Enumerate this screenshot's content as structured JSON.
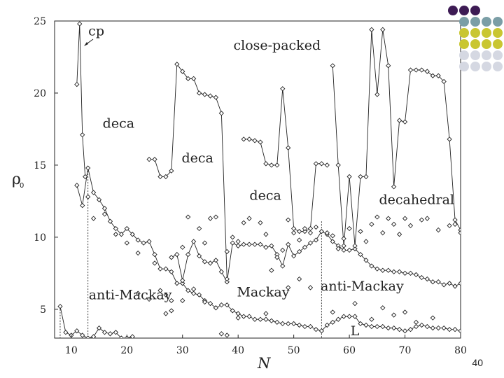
{
  "page_number": "40",
  "decor": {
    "colors": [
      "#3d1b54",
      "#7b9ea6",
      "#c9c631",
      "#d5d8e2"
    ],
    "rows": [
      [
        "#3d1b54",
        "#3d1b54",
        "#3d1b54"
      ],
      [
        "#7b9ea6",
        "#7b9ea6",
        "#7b9ea6",
        "#7b9ea6"
      ],
      [
        "#c9c631",
        "#c9c631",
        "#c9c631",
        "#c9c631"
      ],
      [
        "#c9c631",
        "#c9c631",
        "#c9c631",
        "#c9c631"
      ],
      [
        "#d5d8e2",
        "#d5d8e2",
        "#d5d8e2",
        "#d5d8e2"
      ],
      [
        "#d5d8e2",
        "#d5d8e2",
        "#d5d8e2",
        "#d5d8e2"
      ]
    ]
  },
  "chart_data": {
    "type": "line",
    "xlabel": "N",
    "ylabel": "ρ",
    "ylabel_sub": "0",
    "xlim": [
      7,
      80
    ],
    "ylim": [
      3,
      25
    ],
    "x_ticks": [
      10,
      20,
      30,
      40,
      50,
      60,
      70,
      80
    ],
    "y_ticks": [
      5,
      10,
      15,
      20,
      25
    ],
    "grid": false,
    "marker": "open diamond",
    "annotations": [
      {
        "text": "cp",
        "x": 14.5,
        "y": 24.0
      },
      {
        "text": "close-packed",
        "x": 47,
        "y": 23.0
      },
      {
        "text": "deca",
        "x": 18.5,
        "y": 17.6
      },
      {
        "text": "deca",
        "x": 32.7,
        "y": 15.2
      },
      {
        "text": "deca",
        "x": 44.9,
        "y": 12.6
      },
      {
        "text": "decahedral",
        "x": 72.1,
        "y": 12.3
      },
      {
        "text": "anti-Mackay",
        "x": 20.6,
        "y": 5.7
      },
      {
        "text": "Mackay",
        "x": 44.5,
        "y": 5.9
      },
      {
        "text": "anti-Mackay",
        "x": 62.3,
        "y": 6.3
      },
      {
        "text": "L",
        "x": 61.0,
        "y": 3.2
      }
    ],
    "dashed_markers": [
      {
        "x": 8,
        "y_top": 5.2
      },
      {
        "x": 13,
        "y_top": 14.6
      },
      {
        "x": 55,
        "y_top": 11.1
      }
    ],
    "series": [
      {
        "x": [
          11,
          12,
          13,
          14,
          15,
          16,
          17,
          18,
          19,
          20,
          21,
          22,
          23,
          24,
          25,
          26,
          27,
          28,
          29,
          30,
          31,
          32,
          33,
          34,
          35,
          36,
          37,
          38,
          39,
          40,
          41,
          42,
          43,
          44,
          45,
          46,
          47,
          48,
          49,
          50,
          51,
          52,
          53,
          54,
          55,
          56,
          57,
          58,
          59,
          60,
          61,
          62,
          63,
          64,
          65,
          66,
          67,
          68,
          69,
          70,
          71,
          72,
          73,
          74,
          75,
          76,
          77,
          78,
          79,
          80
        ],
        "y": [
          13.6,
          12.2,
          14.8,
          13.1,
          12.6,
          12.0,
          11.1,
          10.6,
          10.2,
          10.6,
          10.2,
          9.8,
          9.6,
          9.7,
          8.8,
          7.8,
          7.8,
          7.6,
          6.8,
          6.8,
          6.3,
          6.1,
          6.0,
          5.6,
          5.4,
          5.1,
          5.3,
          5.3,
          4.9,
          4.7,
          4.5,
          4.5,
          4.3,
          4.3,
          4.3,
          4.2,
          4.1,
          4.0,
          4.0,
          4.0,
          3.9,
          3.8,
          3.8,
          3.6,
          3.5,
          3.9,
          4.1,
          4.3,
          4.5,
          4.5,
          4.5,
          4.0,
          3.9,
          3.8,
          3.8,
          3.8,
          3.7,
          3.7,
          3.6,
          3.5,
          3.6,
          3.8,
          3.9,
          3.8,
          3.7,
          3.7,
          3.7,
          3.6,
          3.6,
          3.5
        ]
      },
      {
        "x": [
          28,
          29,
          30,
          31,
          32,
          33,
          34,
          35,
          36,
          37,
          38,
          39,
          40,
          41,
          42,
          43,
          44,
          45,
          46,
          47,
          48,
          49,
          50,
          51,
          52,
          53,
          54,
          55,
          56,
          57,
          58,
          59,
          60,
          61,
          62,
          63,
          64,
          65,
          66,
          67,
          68,
          69,
          70,
          71,
          72,
          73,
          74,
          75,
          76,
          77,
          78,
          79,
          80
        ],
        "y": [
          8.6,
          8.8,
          7.0,
          8.8,
          9.7,
          8.7,
          8.3,
          8.2,
          8.4,
          7.6,
          6.9,
          9.6,
          9.4,
          9.5,
          9.5,
          9.5,
          9.5,
          9.3,
          9.4,
          8.8,
          8.0,
          9.5,
          8.7,
          9.0,
          9.3,
          9.6,
          9.8,
          10.4,
          10.2,
          9.7,
          9.4,
          9.1,
          9.1,
          9.2,
          8.8,
          8.4,
          8.0,
          7.8,
          7.7,
          7.7,
          7.6,
          7.6,
          7.5,
          7.5,
          7.4,
          7.2,
          7.1,
          6.9,
          6.9,
          6.7,
          6.8,
          6.6,
          6.8
        ]
      },
      {
        "x": [
          24,
          25,
          26,
          27,
          28,
          29,
          30,
          31,
          32,
          33,
          34,
          35,
          36,
          37,
          38
        ],
        "y": [
          15.4,
          15.4,
          14.2,
          14.2,
          14.6,
          22.0,
          21.5,
          21.0,
          21.0,
          20.0,
          19.9,
          19.8,
          19.7,
          18.6,
          7.1
        ]
      },
      {
        "x": [
          41,
          42,
          43,
          44,
          45,
          46,
          47,
          48,
          49,
          50,
          51,
          52,
          53,
          54,
          55,
          56
        ],
        "y": [
          16.8,
          16.8,
          16.7,
          16.6,
          15.1,
          15.0,
          15.0,
          20.3,
          16.2,
          10.6,
          10.4,
          10.4,
          10.6,
          15.1,
          15.1,
          15.0
        ]
      },
      {
        "x": [
          57,
          58,
          59,
          60,
          61,
          62,
          63,
          64,
          65,
          66,
          67,
          68,
          69,
          70,
          71,
          72,
          73,
          74,
          75,
          76,
          77,
          78,
          79,
          80
        ],
        "y": [
          21.9,
          15.0,
          9.4,
          14.2,
          9.4,
          14.2,
          14.2,
          24.4,
          19.9,
          24.4,
          21.9,
          13.5,
          18.1,
          18.0,
          21.6,
          21.6,
          21.6,
          21.5,
          21.2,
          21.2,
          20.8,
          16.8,
          11.2,
          10.5
        ]
      },
      {
        "x": [
          8,
          9,
          10,
          11,
          12,
          13,
          14,
          15,
          16,
          17,
          18,
          19,
          20,
          21
        ],
        "y": [
          5.2,
          3.4,
          3.2,
          3.5,
          3.2,
          3.0,
          3.1,
          3.7,
          3.4,
          3.3,
          3.4,
          3.0,
          3.0,
          3.1
        ]
      },
      {
        "x": [
          11,
          11.5,
          12,
          12.5
        ],
        "y": [
          20.6,
          24.8,
          17.1,
          14.2
        ]
      }
    ],
    "scatter_points": {
      "x": [
        13,
        14,
        16,
        18,
        20,
        22,
        25,
        26,
        27,
        28,
        30,
        31,
        33,
        34,
        35,
        36,
        38,
        39,
        40,
        41,
        42,
        44,
        45,
        46,
        47,
        48,
        49,
        50,
        51,
        52,
        53,
        54,
        56,
        57,
        58,
        59,
        60,
        62,
        63,
        64,
        65,
        66,
        67,
        68,
        69,
        70,
        71,
        73,
        74,
        76,
        78,
        79,
        80,
        27,
        28,
        30,
        32,
        34,
        36,
        38,
        40,
        45,
        49,
        51,
        53,
        57,
        61,
        64,
        66,
        68,
        70,
        72,
        75,
        22,
        24,
        37
      ],
      "y": [
        12.8,
        11.3,
        11.6,
        10.2,
        9.6,
        8.9,
        8.2,
        6.3,
        6.0,
        5.6,
        9.3,
        11.4,
        10.6,
        9.6,
        11.3,
        11.4,
        9.0,
        10.0,
        9.7,
        11.0,
        11.3,
        11.0,
        10.2,
        7.7,
        8.6,
        9.1,
        11.2,
        10.3,
        9.8,
        10.6,
        10.3,
        10.7,
        10.3,
        10.1,
        9.2,
        9.9,
        10.6,
        10.4,
        9.7,
        10.9,
        11.4,
        10.3,
        11.3,
        10.9,
        10.2,
        11.3,
        10.8,
        11.2,
        11.3,
        10.5,
        10.8,
        10.9,
        10.3,
        4.7,
        4.9,
        5.6,
        6.4,
        5.5,
        5.1,
        3.2,
        4.4,
        4.7,
        6.5,
        7.1,
        6.5,
        4.8,
        5.4,
        4.3,
        5.1,
        4.6,
        4.8,
        4.1,
        4.4,
        6.1,
        5.7,
        3.3
      ]
    }
  }
}
